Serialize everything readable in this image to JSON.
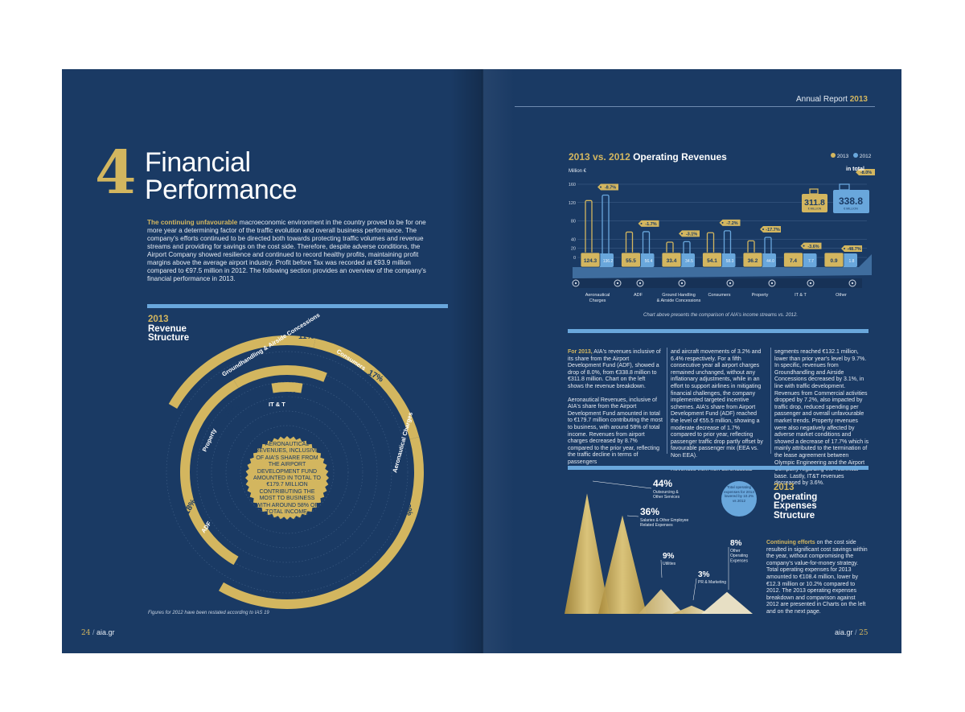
{
  "left": {
    "chapter_number": "4",
    "title_line1": "Financial",
    "title_line2": "Performance",
    "intro_lead": "The continuing unfavourable",
    "intro_text": " macroeconomic environment in the country proved to be for one more year a determining factor of the traffic evolution and overall business performance. The company's efforts continued to be directed both towards protecting traffic volumes and revenue streams and providing for savings on the cost side. Therefore, despite adverse conditions, the Airport Company showed resilience and continued to record healthy profits, maintaining profit margins above the average airport industry. Profit before Tax was recorded at €93.9 million compared to €97.5 million in 2012. The following section provides an overview of the company's financial performance in 2013.",
    "revenue_title_year": "2013",
    "revenue_title_line1": "Revenue",
    "revenue_title_line2": "Structure",
    "center_text": "AERONAUTICAL REVENUES, INCLUSIVE OF AIA'S SHARE FROM THE AIRPORT DEVELOPMENT FUND AMOUNTED IN TOTAL TO €179.7 MILLION CONTRIBUTING THE MOST TO BUSINESS WITH AROUND 58% OF TOTAL INCOME.",
    "footnote": "Figures for 2012 have been restated according to IAS 19",
    "page_number": "24",
    "site": "aia.gr"
  },
  "right": {
    "header_prefix": "Annual Report ",
    "header_year": "2013",
    "chart_title_year": "2013 vs. 2012",
    "chart_title_rest": " Operating Revenues",
    "legend_2013": "2013",
    "legend_2012": "2012",
    "unit": "Million €",
    "in_total": "in total",
    "total_change": "-8.0%",
    "total_2013": "311.8",
    "total_2012": "338.8",
    "total_unit": "€ MILLION",
    "chart_caption": "Chart above presents the comparison of AIA's income streams vs. 2012.",
    "col1_lead": "For 2013,",
    "col1_p1": " AIA's revenues inclusive of its share from the Airport Development Fund (ADF), showed a drop of 8.0%, from €338.8 million to €311.8 million. Chart on the left shows the revenue breakdown.",
    "col1_p2": "Aeronautical Revenues, inclusive of AIA's share from the Airport Development Fund amounted in total to €179.7 million contributing the most to business, with around 58% of total income. Revenues from airport charges decreased by 8.7% compared to the prior year, reflecting the traffic decline in terms of passengers",
    "col2_p1": "and aircraft movements of 3.2% and 6.4% respectively. For a fifth consecutive year all airport charges remained unchanged, without any inflationary adjustments, while in an effort to support airlines in mitigating financial challenges, the company implemented targeted incentive schemes. AIA's share from Airport Development Fund (ADF) reached the level of €55.5 million, showing a moderate decrease of 1.7% compared to prior year, reflecting passenger traffic drop partly offset by favourable passenger mix (EEA vs. Non EEA).",
    "col2_p2": "Revenues from non-aeronautical",
    "col3_p1": "segments reached €132.1 million, lower than prior year's level by 9.7%. In specific, revenues from Groundhandling and Airside Concessions decreased by 3.1%, in line with traffic development. Revenues from Commercial activities dropped by 7.2%, also impacted by traffic drop, reduced spending per passenger and overall unfavourable market trends. Property revenues were also negatively affected by adverse market conditions and showed a decrease of 17.7% which is mainly attributed to the termination of the lease agreement between Olympic Engineering and the Airport Company regarding the Technical base. Lastly, IT&T revenues decreased by 3.6%.",
    "opex_title_year": "2013",
    "opex_title_line1": "Operating",
    "opex_title_line2": "Expenses",
    "opex_title_line3": "Structure",
    "opex_bubble": "Total operating expenses for 2013 lowered by 10.2% vs 2012",
    "opex_lead": "Continuing efforts",
    "opex_text": " on the cost side resulted in significant cost savings within the year, without compromising the company's value-for-money strategy. Total operating expenses for 2013 amounted to €108.4 million, lower by €12.3 million or 10.2% compared to 2012. The 2013 operating expenses breakdown and comparison against 2012 are presented in Charts on the left and on the next page.",
    "site": "aia.gr",
    "page_number": "25"
  },
  "chart_data": [
    {
      "type": "pie",
      "title": "2013 Revenue Structure",
      "labels": [
        "Aeronautical Charges",
        "ADF",
        "Property",
        "IT & T",
        "Groundhandling & Airside Concessions",
        "Consumers"
      ],
      "values": [
        40,
        18,
        12,
        2,
        11,
        17
      ],
      "value_labels": [
        "40%",
        "18%",
        "12%",
        "2%",
        "11%",
        "17%"
      ],
      "colors": [
        "#d3b65f",
        "#d3b65f",
        "#d3b65f",
        "#d3b65f",
        "#d3b65f",
        "#d3b65f"
      ]
    },
    {
      "type": "bar",
      "title": "2013 vs. 2012 Operating Revenues",
      "ylabel": "Million €",
      "ylim": [
        0,
        160
      ],
      "yticks": [
        0,
        20,
        40,
        80,
        120,
        160
      ],
      "categories": [
        "Aeronautical Charges",
        "ADF",
        "Ground Handling & Airside Concessions",
        "Consumers",
        "Property",
        "IT & T",
        "Other"
      ],
      "series": [
        {
          "name": "2013",
          "values": [
            124.3,
            55.5,
            33.4,
            54.1,
            36.2,
            7.4,
            0.9
          ],
          "color": "#d3b65f"
        },
        {
          "name": "2012",
          "values": [
            136.2,
            56.4,
            34.5,
            58.3,
            44.0,
            7.7,
            1.8
          ],
          "color": "#69a7dc"
        }
      ],
      "value_labels_2013": [
        "124.3",
        "55.5",
        "33.4",
        "54.1",
        "36.2",
        "7.4",
        "0.9"
      ],
      "value_labels_2012": [
        "136.2",
        "56.4",
        "34.5",
        "58.3",
        "44.0",
        "7.7",
        "1.8"
      ],
      "changes": [
        "-8.7%",
        "-1.7%",
        "-3.1%",
        "-7.2%",
        "-17.7%",
        "-3.6%",
        "-48.7%"
      ]
    },
    {
      "type": "area",
      "title": "2013 Operating Expenses Structure",
      "labels": [
        "Outsourcing & Other Services",
        "Salaries & Other Employee Related Expenses",
        "Utilities",
        "PR & Marketing",
        "Other Operating Expenses"
      ],
      "values": [
        44,
        36,
        9,
        3,
        8
      ],
      "value_labels": [
        "44%",
        "36%",
        "9%",
        "3%",
        "8%"
      ]
    }
  ]
}
